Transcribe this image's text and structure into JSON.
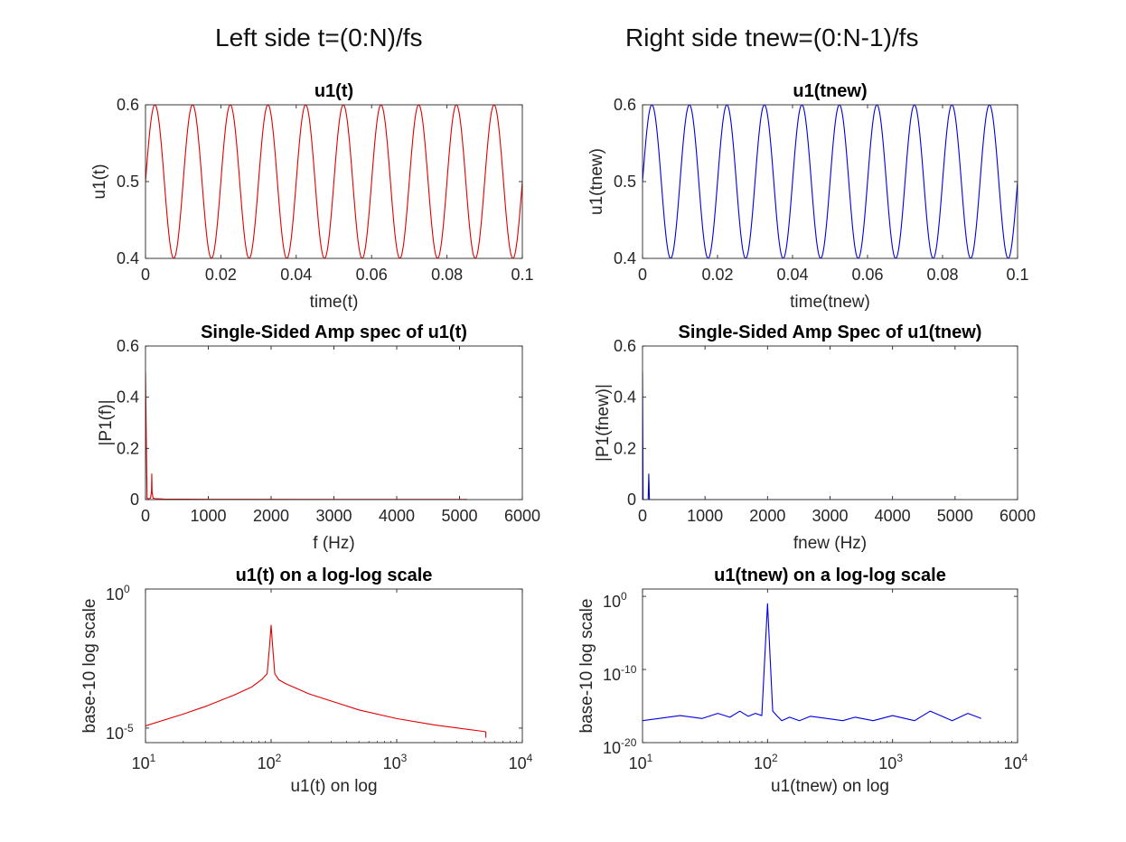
{
  "figure": {
    "left_title": "Left side t=(0:N)/fs",
    "right_title": "Right side tnew=(0:N-1)/fs"
  },
  "colors": {
    "left": "#e00000",
    "right": "#0000e0",
    "axes": "#262626"
  },
  "chart_data": [
    {
      "id": "u1t",
      "type": "line",
      "title": "u1(t)",
      "xlabel": "time(t)",
      "ylabel": "u1(t)",
      "xlim": [
        0,
        0.1
      ],
      "ylim": [
        0.4,
        0.6
      ],
      "xticks": [
        0,
        0.02,
        0.04,
        0.06,
        0.08,
        0.1
      ],
      "xtick_labels": [
        "0",
        "0.02",
        "0.04",
        "0.06",
        "0.08",
        "0.1"
      ],
      "yticks": [
        0.4,
        0.5,
        0.6
      ],
      "ytick_labels": [
        "0.4",
        "0.5",
        "0.6"
      ],
      "grid": false,
      "color": "#e00000",
      "series": [
        {
          "function": "0.5 + 0.1*sin(2*pi*100*t)",
          "x": [
            0,
            0.0025,
            0.005,
            0.0075,
            0.01,
            0.0125,
            0.015,
            0.0175,
            0.02,
            0.0225,
            0.025,
            0.0275,
            0.03,
            0.0325,
            0.035,
            0.0375,
            0.04,
            0.0425,
            0.045,
            0.0475,
            0.05,
            0.0525,
            0.055,
            0.0575,
            0.06,
            0.0625,
            0.065,
            0.0675,
            0.07,
            0.0725,
            0.075,
            0.0775,
            0.08,
            0.0825,
            0.085,
            0.0875,
            0.09,
            0.0925,
            0.095,
            0.0975,
            0.1
          ],
          "y": [
            0.5,
            0.6,
            0.5,
            0.4,
            0.5,
            0.6,
            0.5,
            0.4,
            0.5,
            0.6,
            0.5,
            0.4,
            0.5,
            0.6,
            0.5,
            0.4,
            0.5,
            0.6,
            0.5,
            0.4,
            0.5,
            0.6,
            0.5,
            0.4,
            0.5,
            0.6,
            0.5,
            0.4,
            0.5,
            0.6,
            0.5,
            0.4,
            0.5,
            0.6,
            0.5,
            0.4,
            0.5,
            0.6,
            0.5,
            0.4,
            0.5
          ]
        }
      ]
    },
    {
      "id": "u1tnew",
      "type": "line",
      "title": "u1(tnew)",
      "xlabel": "time(tnew)",
      "ylabel": "u1(tnew)",
      "xlim": [
        0,
        0.1
      ],
      "ylim": [
        0.4,
        0.6
      ],
      "xticks": [
        0,
        0.02,
        0.04,
        0.06,
        0.08,
        0.1
      ],
      "xtick_labels": [
        "0",
        "0.02",
        "0.04",
        "0.06",
        "0.08",
        "0.1"
      ],
      "yticks": [
        0.4,
        0.5,
        0.6
      ],
      "ytick_labels": [
        "0.4",
        "0.5",
        "0.6"
      ],
      "grid": false,
      "color": "#0000e0",
      "series": [
        {
          "function": "0.5 + 0.1*sin(2*pi*100*tnew)",
          "x": [
            0,
            0.0025,
            0.005,
            0.0075,
            0.01,
            0.0125,
            0.015,
            0.0175,
            0.02,
            0.0225,
            0.025,
            0.0275,
            0.03,
            0.0325,
            0.035,
            0.0375,
            0.04,
            0.0425,
            0.045,
            0.0475,
            0.05,
            0.0525,
            0.055,
            0.0575,
            0.06,
            0.0625,
            0.065,
            0.0675,
            0.07,
            0.0725,
            0.075,
            0.0775,
            0.08,
            0.0825,
            0.085,
            0.0875,
            0.09,
            0.0925,
            0.095,
            0.0975,
            0.1
          ],
          "y": [
            0.5,
            0.6,
            0.5,
            0.4,
            0.5,
            0.6,
            0.5,
            0.4,
            0.5,
            0.6,
            0.5,
            0.4,
            0.5,
            0.6,
            0.5,
            0.4,
            0.5,
            0.6,
            0.5,
            0.4,
            0.5,
            0.6,
            0.5,
            0.4,
            0.5,
            0.6,
            0.5,
            0.4,
            0.5,
            0.6,
            0.5,
            0.4,
            0.5,
            0.6,
            0.5,
            0.4,
            0.5,
            0.6,
            0.5,
            0.4,
            0.5
          ]
        }
      ]
    },
    {
      "id": "spec-left",
      "type": "line",
      "title": "Single-Sided Amp spec of u1(t)",
      "xlabel": "f (Hz)",
      "ylabel": "|P1(f)|",
      "xlim": [
        0,
        6000
      ],
      "ylim": [
        0,
        0.6
      ],
      "xticks": [
        0,
        1000,
        2000,
        3000,
        4000,
        5000,
        6000
      ],
      "xtick_labels": [
        "0",
        "1000",
        "2000",
        "3000",
        "4000",
        "5000",
        "6000"
      ],
      "yticks": [
        0,
        0.2,
        0.4,
        0.6
      ],
      "ytick_labels": [
        "0",
        "0.2",
        "0.4",
        "0.6"
      ],
      "grid": false,
      "color": "#e00000",
      "series": [
        {
          "x": [
            0,
            15,
            25,
            50,
            80,
            95,
            100,
            105,
            120,
            150,
            300,
            1000,
            3000,
            5120
          ],
          "y": [
            0.5,
            0.2,
            0.005,
            0.003,
            0.006,
            0.03,
            0.1,
            0.03,
            0.006,
            0.004,
            0.002,
            0.001,
            0.0007,
            0.0005
          ]
        }
      ]
    },
    {
      "id": "spec-right",
      "type": "line",
      "title": "Single-Sided Amp Spec of u1(tnew)",
      "xlabel": "fnew (Hz)",
      "ylabel": "|P1(fnew)|",
      "xlim": [
        0,
        6000
      ],
      "ylim": [
        0,
        0.6
      ],
      "xticks": [
        0,
        1000,
        2000,
        3000,
        4000,
        5000,
        6000
      ],
      "xtick_labels": [
        "0",
        "1000",
        "2000",
        "3000",
        "4000",
        "5000",
        "6000"
      ],
      "yticks": [
        0,
        0.2,
        0.4,
        0.6
      ],
      "ytick_labels": [
        "0",
        "0.2",
        "0.4",
        "0.6"
      ],
      "grid": false,
      "color": "#0000e0",
      "series": [
        {
          "x": [
            0,
            10,
            20,
            90,
            100,
            110,
            5120
          ],
          "y": [
            0.5,
            0,
            0,
            0,
            0.1,
            0,
            0
          ]
        }
      ]
    },
    {
      "id": "log-left",
      "type": "line",
      "title": "u1(t) on a log-log scale",
      "xlabel": "u1(t) on log",
      "ylabel": "base-10 log scale",
      "xscale": "log",
      "yscale": "log",
      "xlim": [
        10,
        10000
      ],
      "ylim": [
        3e-06,
        1
      ],
      "xticks": [
        10,
        100,
        1000,
        10000
      ],
      "xtick_labels": [
        [
          "10",
          "1"
        ],
        [
          "10",
          "2"
        ],
        [
          "10",
          "3"
        ],
        [
          "10",
          "4"
        ]
      ],
      "yticks": [
        1e-05,
        1
      ],
      "ytick_labels": [
        [
          "10",
          "-5"
        ],
        [
          "10",
          "0"
        ]
      ],
      "grid": false,
      "color": "#e00000",
      "series": [
        {
          "x": [
            10,
            20,
            30,
            50,
            70,
            85,
            93,
            97,
            100,
            103,
            107,
            115,
            130,
            200,
            500,
            1000,
            2000,
            5000,
            5120,
            5120
          ],
          "y": [
            1.2e-05,
            3.2e-05,
            6e-05,
            0.00015,
            0.0003,
            0.00058,
            0.0009,
            0.008,
            0.05,
            0.008,
            0.0009,
            0.00055,
            0.0004,
            0.00017,
            4.5e-05,
            2.2e-05,
            1.3e-05,
            7.5e-06,
            7.2e-06,
            4.5e-06
          ]
        }
      ]
    },
    {
      "id": "log-right",
      "type": "line",
      "title": "u1(tnew) on a log-log scale",
      "xlabel": "u1(tnew) on log",
      "ylabel": "base-10 log scale",
      "xscale": "log",
      "yscale": "log",
      "xlim": [
        10,
        10000
      ],
      "ylim": [
        1e-20,
        10
      ],
      "xticks": [
        10,
        100,
        1000,
        10000
      ],
      "xtick_labels": [
        [
          "10",
          "1"
        ],
        [
          "10",
          "2"
        ],
        [
          "10",
          "3"
        ],
        [
          "10",
          "4"
        ]
      ],
      "yticks": [
        1e-20,
        1e-10,
        1
      ],
      "ytick_labels": [
        [
          "10",
          "-20"
        ],
        [
          "10",
          "-10"
        ],
        [
          "10",
          "0"
        ]
      ],
      "grid": false,
      "color": "#0000e0",
      "series": [
        {
          "x": [
            10,
            20,
            30,
            40,
            50,
            60,
            70,
            80,
            90,
            100,
            110,
            120,
            130,
            150,
            180,
            220,
            300,
            400,
            500,
            700,
            1000,
            1500,
            2000,
            3000,
            4000,
            5120
          ],
          "y": [
            1e-17,
            5e-17,
            2e-17,
            1e-16,
            3e-17,
            2e-16,
            4e-17,
            1e-16,
            5e-17,
            0.1,
            2e-16,
            4e-17,
            1e-17,
            3e-17,
            1e-17,
            4e-17,
            2e-17,
            1e-17,
            3e-17,
            1e-17,
            5e-17,
            1e-17,
            2e-16,
            1e-17,
            1e-16,
            2e-17
          ]
        }
      ]
    }
  ]
}
